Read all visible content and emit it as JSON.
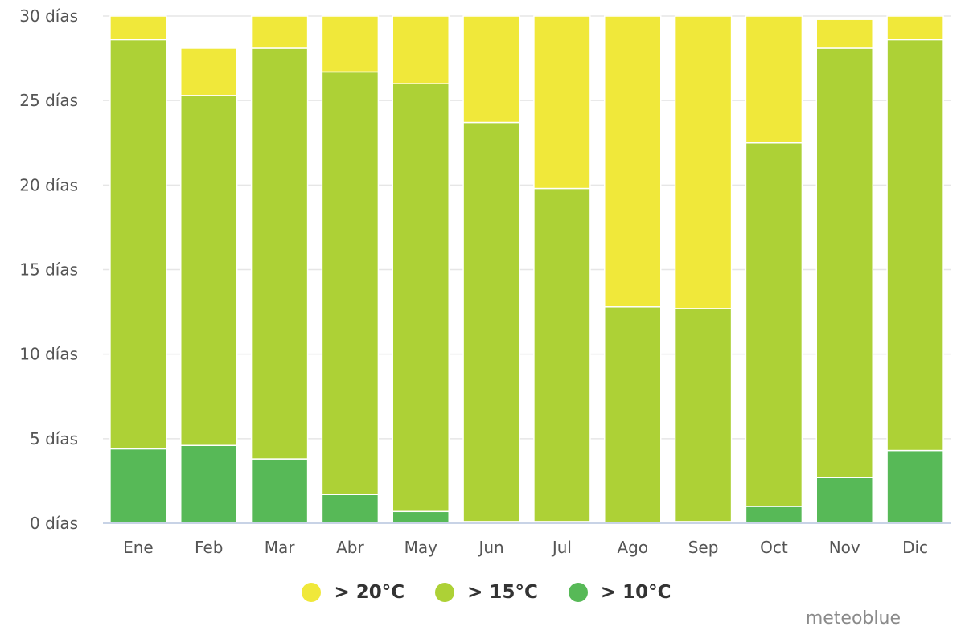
{
  "chart_data": {
    "type": "bar",
    "stacked": true,
    "categories": [
      "Ene",
      "Feb",
      "Mar",
      "Abr",
      "May",
      "Jun",
      "Jul",
      "Ago",
      "Sep",
      "Oct",
      "Nov",
      "Dic"
    ],
    "series": [
      {
        "name": "> 10°C",
        "color": "#57b957",
        "values": [
          4.4,
          4.6,
          3.8,
          1.7,
          0.7,
          0.1,
          0.1,
          0.0,
          0.1,
          1.0,
          2.7,
          4.3
        ]
      },
      {
        "name": "> 15°C",
        "color": "#add136",
        "values": [
          24.2,
          20.7,
          24.3,
          25.0,
          25.3,
          23.6,
          19.7,
          12.8,
          12.6,
          21.5,
          25.4,
          24.3
        ]
      },
      {
        "name": "> 20°C",
        "color": "#f0e83a",
        "values": [
          1.4,
          2.8,
          1.9,
          3.3,
          4.0,
          6.3,
          10.2,
          17.2,
          17.3,
          7.5,
          1.7,
          1.4
        ]
      }
    ],
    "yticks": [
      "0 días",
      "5 días",
      "10 días",
      "15 días",
      "20 días",
      "25 días",
      "30 días"
    ],
    "ylim": [
      0,
      30
    ],
    "grid": true,
    "legend_position": "bottom-center",
    "legend_order": [
      "> 20°C",
      "> 15°C",
      "> 10°C"
    ],
    "credit": "meteoblue"
  }
}
